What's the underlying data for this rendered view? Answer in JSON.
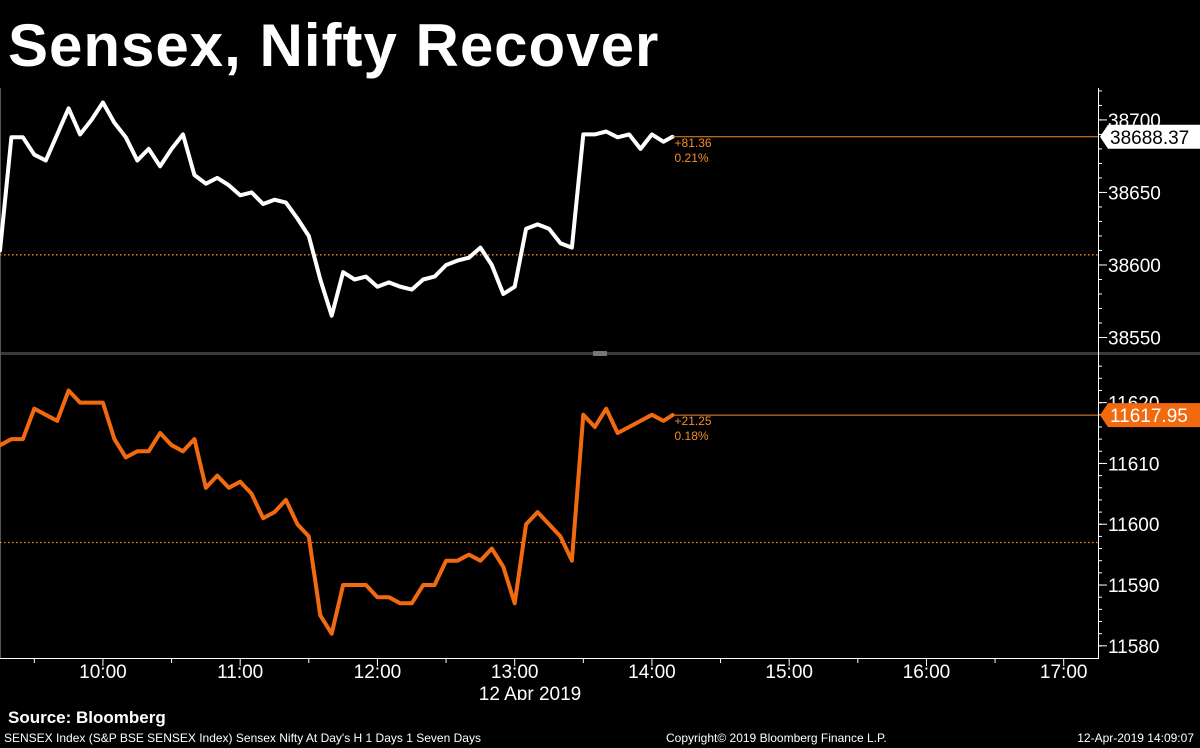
{
  "title": "Sensex, Nifty Recover",
  "footer": {
    "source": "Source: Bloomberg",
    "description": "SENSEX Index (S&P BSE SENSEX Index) Sensex Nifty At Day's H 1 Days 1 Seven Days",
    "copyright": "Copyright© 2019 Bloomberg Finance L.P.",
    "timestamp": "12-Apr-2019 14:09:07"
  },
  "colors": {
    "background": "#000000",
    "sensex": "#ffffff",
    "nifty": "#f26a0f",
    "reference": "#f28c28"
  },
  "chart_data": {
    "type": "line",
    "x_axis": {
      "ticks": [
        "10:00",
        "11:00",
        "12:00",
        "13:00",
        "14:00",
        "15:00",
        "16:00",
        "17:00"
      ],
      "date_label": "12 Apr 2019",
      "range": [
        "09:15",
        "17:15"
      ]
    },
    "panels": [
      {
        "series": {
          "name": "SENSEX",
          "color": "#ffffff",
          "last_value": "38688.37",
          "change": "+81.36",
          "change_pct": "0.21%",
          "x": [
            "09:15",
            "09:20",
            "09:25",
            "09:30",
            "09:35",
            "09:40",
            "09:45",
            "09:50",
            "09:55",
            "10:00",
            "10:05",
            "10:10",
            "10:15",
            "10:20",
            "10:25",
            "10:30",
            "10:35",
            "10:40",
            "10:45",
            "10:50",
            "10:55",
            "11:00",
            "11:05",
            "11:10",
            "11:15",
            "11:20",
            "11:25",
            "11:30",
            "11:35",
            "11:40",
            "11:45",
            "11:50",
            "11:55",
            "12:00",
            "12:05",
            "12:10",
            "12:15",
            "12:20",
            "12:25",
            "12:30",
            "12:35",
            "12:40",
            "12:45",
            "12:50",
            "12:55",
            "13:00",
            "13:05",
            "13:10",
            "13:15",
            "13:20",
            "13:25",
            "13:30",
            "13:35",
            "13:40",
            "13:45",
            "13:50",
            "13:55",
            "14:00",
            "14:05",
            "14:09"
          ],
          "values": [
            38610,
            38688,
            38688,
            38676,
            38672,
            38690,
            38708,
            38690,
            38700,
            38712,
            38698,
            38688,
            38672,
            38680,
            38668,
            38680,
            38690,
            38662,
            38656,
            38660,
            38655,
            38648,
            38650,
            38642,
            38645,
            38643,
            38632,
            38620,
            38590,
            38565,
            38595,
            38590,
            38592,
            38585,
            38588,
            38585,
            38583,
            38590,
            38592,
            38600,
            38603,
            38605,
            38612,
            38600,
            38580,
            38585,
            38625,
            38628,
            38625,
            38615,
            38612,
            38690,
            38690,
            38692,
            38688,
            38690,
            38680,
            38690,
            38685,
            38688.37
          ]
        },
        "y_axis": {
          "ticks": [
            38550,
            38600,
            38650,
            38700
          ],
          "range": [
            38540,
            38722
          ]
        },
        "reference_level": 38607
      },
      {
        "series": {
          "name": "NIFTY",
          "color": "#f26a0f",
          "last_value": "11617.95",
          "change": "+21.25",
          "change_pct": "0.18%",
          "x": [
            "09:15",
            "09:20",
            "09:25",
            "09:30",
            "09:35",
            "09:40",
            "09:45",
            "09:50",
            "09:55",
            "10:00",
            "10:05",
            "10:10",
            "10:15",
            "10:20",
            "10:25",
            "10:30",
            "10:35",
            "10:40",
            "10:45",
            "10:50",
            "10:55",
            "11:00",
            "11:05",
            "11:10",
            "11:15",
            "11:20",
            "11:25",
            "11:30",
            "11:35",
            "11:40",
            "11:45",
            "11:50",
            "11:55",
            "12:00",
            "12:05",
            "12:10",
            "12:15",
            "12:20",
            "12:25",
            "12:30",
            "12:35",
            "12:40",
            "12:45",
            "12:50",
            "12:55",
            "13:00",
            "13:05",
            "13:10",
            "13:15",
            "13:20",
            "13:25",
            "13:30",
            "13:35",
            "13:40",
            "13:45",
            "13:50",
            "13:55",
            "14:00",
            "14:05",
            "14:09"
          ],
          "values": [
            11613,
            11614,
            11614,
            11619,
            11618,
            11617,
            11622,
            11620,
            11620,
            11620,
            11614,
            11611,
            11612,
            11612,
            11615,
            11613,
            11612,
            11614,
            11606,
            11608,
            11606,
            11607,
            11605,
            11601,
            11602,
            11604,
            11600,
            11598,
            11585,
            11582,
            11590,
            11590,
            11590,
            11588,
            11588,
            11587,
            11587,
            11590,
            11590,
            11594,
            11594,
            11595,
            11594,
            11596,
            11593,
            11587,
            11600,
            11602,
            11600,
            11598,
            11594,
            11618,
            11616,
            11619,
            11615,
            11616,
            11617,
            11618,
            11617,
            11617.95
          ]
        },
        "y_axis": {
          "ticks": [
            11580,
            11590,
            11600,
            11610,
            11620
          ],
          "range": [
            11578,
            11628
          ]
        },
        "reference_level": 11597
      }
    ]
  }
}
